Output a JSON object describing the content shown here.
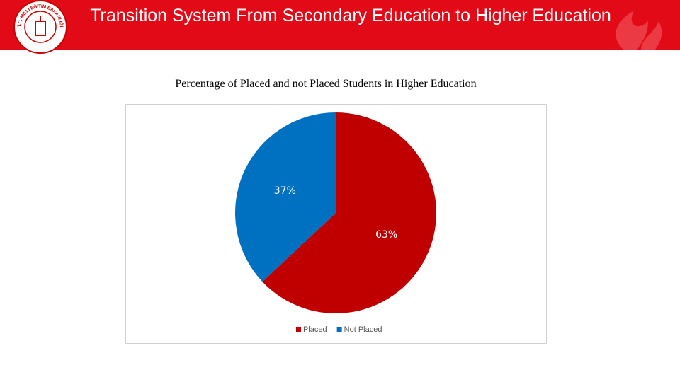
{
  "header": {
    "title": "Transition System From Secondary Education to Higher Education",
    "logo_text": "T.C. MİLLİ EĞİTİM BAKANLIĞI"
  },
  "chart_data": {
    "type": "pie",
    "title": "Percentage of Placed and not Placed Students in Higher Education",
    "categories": [
      "Placed",
      "Not Placed"
    ],
    "values": [
      63,
      37
    ],
    "value_labels": [
      "63%",
      "37%"
    ],
    "colors": [
      "#c00000",
      "#0070c0"
    ],
    "legend": "bottom"
  }
}
